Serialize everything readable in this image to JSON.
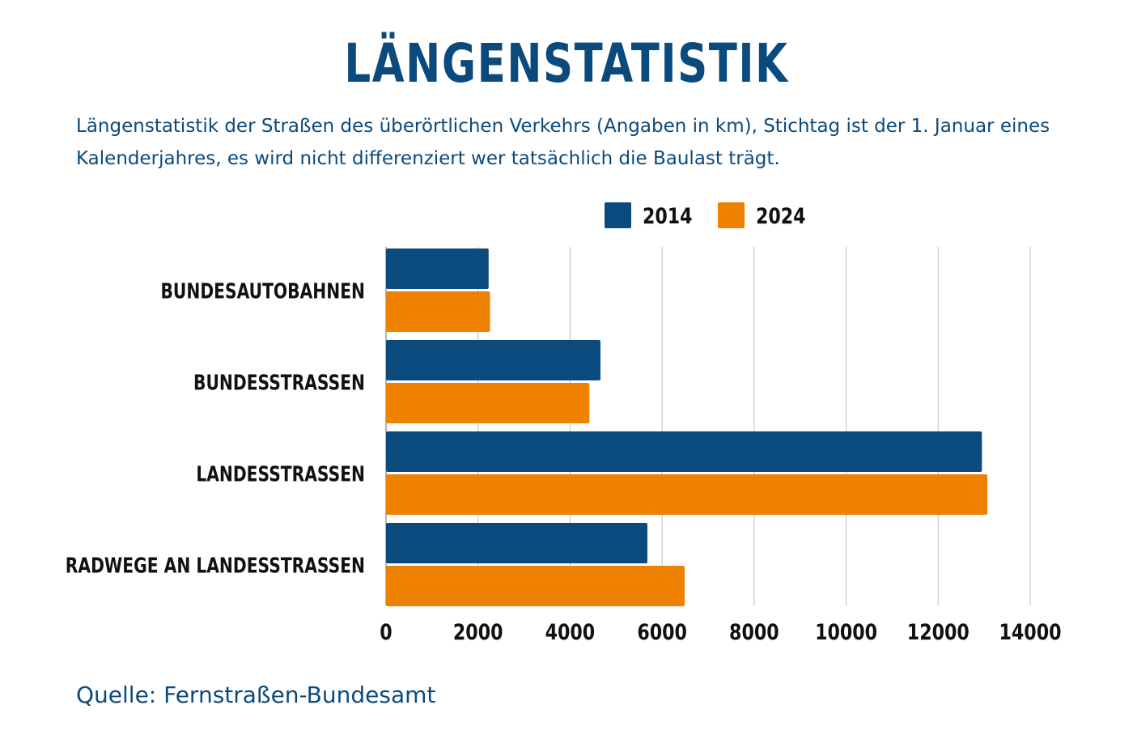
{
  "header": {
    "title": "LÄNGENSTATISTIK",
    "subtitle": "Längenstatistik der Straßen des überörtlichen Verkehrs (Angaben in km), Stichtag ist der 1. Januar eines Kalenderjahres, es wird nicht differenziert wer tatsächlich die Baulast trägt."
  },
  "footer": {
    "source": "Quelle: Fernstraßen-Bundesamt"
  },
  "colors": {
    "series_2014": "#0b4a7d",
    "series_2024": "#ee8100",
    "grid": "#c8c8c8",
    "axis_text": "#111111"
  },
  "chart_data": {
    "type": "bar",
    "orientation": "horizontal",
    "title": "LÄNGENSTATISTIK",
    "categories": [
      "BUNDESAUTOBAHNEN",
      "BUNDESSTRASSEN",
      "LANDESSTRASSEN",
      "RADWEGE AN LANDESSTRASSEN"
    ],
    "series": [
      {
        "name": "2014",
        "values": [
          2230,
          4660,
          12950,
          5680
        ]
      },
      {
        "name": "2024",
        "values": [
          2260,
          4420,
          13070,
          6490
        ]
      }
    ],
    "xlim": [
      0,
      14000
    ],
    "xticks": [
      "0",
      "2000",
      "4000",
      "6000",
      "8000",
      "10000",
      "12000",
      "14000"
    ],
    "xlabel": "",
    "ylabel": "",
    "grid": true,
    "legend_position": "top-right"
  }
}
